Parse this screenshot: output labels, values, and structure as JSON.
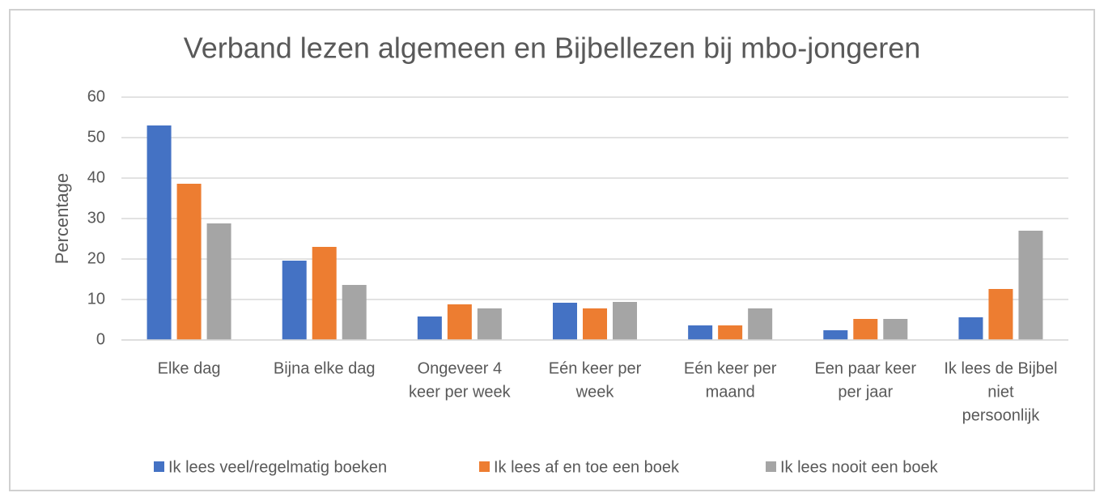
{
  "chart_data": {
    "type": "bar",
    "title": "Verband lezen algemeen en Bijbellezen bij mbo-jongeren",
    "y_label": "Percentage",
    "categories": [
      [
        "Elke dag"
      ],
      [
        "Bijna elke dag"
      ],
      [
        "Ongeveer 4",
        "keer per week"
      ],
      [
        "Eén keer per",
        "week"
      ],
      [
        "Eén keer per",
        "maand"
      ],
      [
        "Een paar keer",
        "per jaar"
      ],
      [
        "Ik lees de Bijbel",
        "niet",
        "persoonlijk"
      ]
    ],
    "series": [
      {
        "name": "Ik lees veel/regelmatig boeken",
        "color": "#4472c4",
        "values": [
          53,
          19.6,
          5.8,
          9.2,
          3.6,
          2.4,
          5.6
        ]
      },
      {
        "name": "Ik lees af en toe een boek",
        "color": "#ed7d31",
        "values": [
          38.6,
          23,
          8.8,
          7.8,
          3.6,
          5.2,
          12.6
        ]
      },
      {
        "name": "Ik lees nooit een boek",
        "color": "#a5a5a5",
        "values": [
          28.8,
          13.6,
          7.8,
          9.4,
          7.8,
          5.2,
          27
        ]
      }
    ],
    "ylim": [
      0,
      60
    ],
    "yticks": [
      0,
      10,
      20,
      30,
      40,
      50,
      60
    ],
    "grid": true,
    "legend": "bottom"
  }
}
